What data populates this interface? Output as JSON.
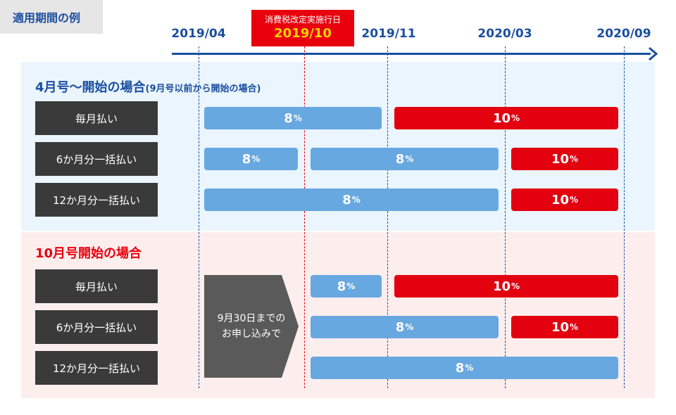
{
  "tag": "適用期間の例",
  "axis": {
    "dates": [
      "2019/04",
      "2019/11",
      "2020/03",
      "2020/09"
    ],
    "tax_date_label": "消費税改定実施行日",
    "tax_date": "2019/10"
  },
  "sections": {
    "april": {
      "title": "4月号〜開始の場合",
      "subtitle": "(9月号以前から開始の場合)",
      "rows": [
        {
          "label": "毎月払い",
          "bars": [
            {
              "value": "8",
              "unit": "%"
            },
            {
              "value": "10",
              "unit": "%"
            }
          ]
        },
        {
          "label": "6か月分一括払い",
          "bars": [
            {
              "value": "8",
              "unit": "%"
            },
            {
              "value": "8",
              "unit": "%"
            },
            {
              "value": "10",
              "unit": "%"
            }
          ]
        },
        {
          "label": "12か月分一括払い",
          "bars": [
            {
              "value": "8",
              "unit": "%"
            },
            {
              "value": "10",
              "unit": "%"
            }
          ]
        }
      ]
    },
    "october": {
      "title": "10月号開始の場合",
      "note_line1": "9月30日までの",
      "note_line2": "お申し込みで",
      "rows": [
        {
          "label": "毎月払い",
          "bars": [
            {
              "value": "8",
              "unit": "%"
            },
            {
              "value": "10",
              "unit": "%"
            }
          ]
        },
        {
          "label": "6か月分一括払い",
          "bars": [
            {
              "value": "8",
              "unit": "%"
            },
            {
              "value": "10",
              "unit": "%"
            }
          ]
        },
        {
          "label": "12か月分一括払い",
          "bars": [
            {
              "value": "8",
              "unit": "%"
            }
          ]
        }
      ]
    }
  },
  "colors": {
    "blue_bar": "#68a8e0",
    "red_bar": "#e3000f",
    "axis": "#1b4fa0",
    "highlight": "#e8000d"
  }
}
